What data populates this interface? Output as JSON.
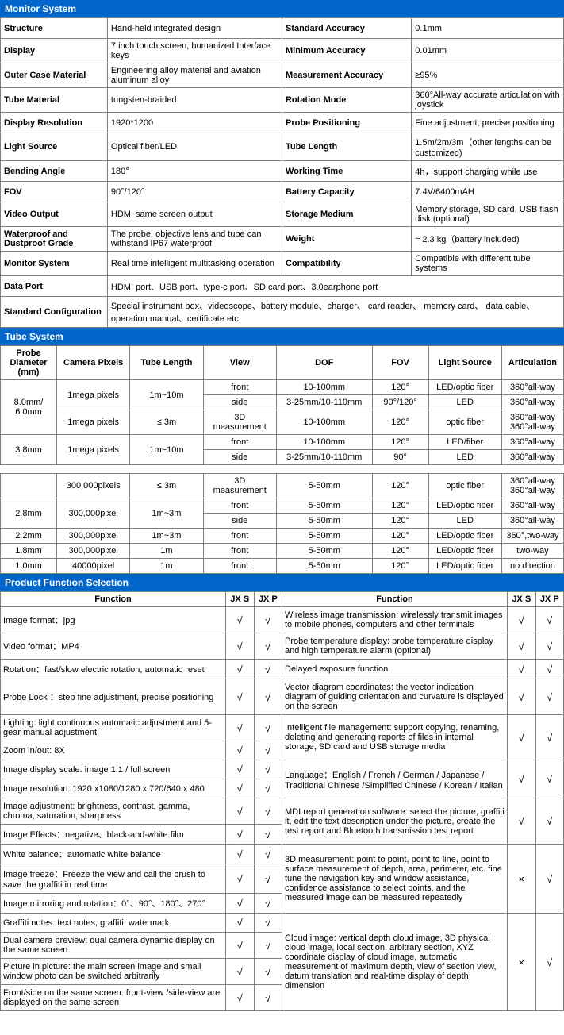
{
  "colors": {
    "header_bg": "#0066cc",
    "header_text": "#ffffff",
    "border": "#808080"
  },
  "sections": {
    "monitor": {
      "title": "Monitor System"
    },
    "tube": {
      "title": "Tube System"
    },
    "func": {
      "title": "Product Function Selection"
    }
  },
  "monitor_rows": [
    [
      "Structure",
      "Hand-held integrated design",
      "Standard Accuracy",
      "0.1mm"
    ],
    [
      "Display",
      "7 inch touch screen, humanized Interface keys",
      "Minimum Accuracy",
      "0.01mm"
    ],
    [
      "Outer Case Material",
      "Engineering alloy material and aviation aluminum alloy",
      "Measurement Accuracy",
      "≥95%"
    ],
    [
      "Tube Material",
      "tungsten-braided",
      "Rotation Mode",
      "360°All-way accurate articulation with joystick"
    ],
    [
      "Display Resolution",
      "1920*1200",
      "Probe Positioning",
      "Fine adjustment, precise positioning"
    ],
    [
      "Light Source",
      "Optical fiber/LED",
      "Tube Length",
      "1.5m/2m/3m（other lengths can be customized)"
    ],
    [
      "Bending Angle",
      "180°",
      "Working Time",
      "4h，support charging while use"
    ],
    [
      "FOV",
      "90°/120°",
      "Battery Capacity",
      "7.4V/6400mAH"
    ],
    [
      "Video Output",
      "HDMI same screen output",
      "Storage Medium",
      "Memory storage, SD card, USB flash disk (optional)"
    ],
    [
      "Waterproof and Dustproof Grade",
      "The probe, objective lens and tube can withstand IP67 waterproof",
      "Weight",
      "≈ 2.3 kg（battery included)"
    ],
    [
      "Monitor System",
      "Real time intelligent multitasking operation",
      "Compatibility",
      "Compatible with different tube systems"
    ]
  ],
  "monitor_tail": [
    {
      "label": "Data Port",
      "value": "HDMI port、USB port、type-c port、SD card   port、3.0earphone port"
    },
    {
      "label": "Standard Configuration",
      "value": "Special instrument box、videoscope、battery module、charger、 card reader、 memory card、 data cable、operation manual、certificate etc."
    }
  ],
  "tube_headers": [
    "Probe Diameter (mm)",
    "Camera Pixels",
    "Tube Length",
    "View",
    "DOF",
    "FOV",
    "Light Source",
    "Articulation"
  ],
  "tube1": {
    "r1": {
      "dia": "8.0mm/ 6.0mm",
      "pix": "1mega pixels",
      "len": "1m~10m",
      "view": "front",
      "dof": "10-100mm",
      "fov": "120°",
      "ls": "LED/optic fiber",
      "art": "360°all-way"
    },
    "r2": {
      "view": "side",
      "dof": "3-25mm/10-110mm",
      "fov": "90°/120°",
      "ls": "LED",
      "art": "360°all-way"
    },
    "r3": {
      "pix": "1mega pixels",
      "len": "≤ 3m",
      "view": "3D measurement",
      "dof": "10-100mm",
      "fov": "120°",
      "ls": "optic fiber",
      "art": "360°all-way 360°all-way"
    },
    "r4": {
      "dia": "3.8mm",
      "pix": "1mega pixels",
      "len": "1m~10m",
      "view": "front",
      "dof": "10-100mm",
      "fov": "120°",
      "ls": "LED/fiber",
      "art": "360°all-way"
    },
    "r5": {
      "view": "side",
      "dof": "3-25mm/10-110mm",
      "fov": "90°",
      "ls": "LED",
      "art": "360°all-way"
    }
  },
  "tube2": {
    "r1": {
      "dia": "",
      "pix": "300,000pixels",
      "len": "≤ 3m",
      "view": "3D measurement",
      "dof": "5-50mm",
      "fov": "120°",
      "ls": "optic fiber",
      "art": "360°all-way 360°all-way"
    },
    "r2": {
      "dia": "2.8mm",
      "pix": "300,000pixel",
      "len": "1m~3m",
      "view": "front",
      "dof": "5-50mm",
      "fov": "120°",
      "ls": "LED/optic fiber",
      "art": "360°all-way"
    },
    "r3": {
      "view": "side",
      "dof": "5-50mm",
      "fov": "120°",
      "ls": "LED",
      "art": "360°all-way"
    },
    "r4": {
      "dia": "2.2mm",
      "pix": "300,000pixel",
      "len": "1m~3m",
      "view": "front",
      "dof": "5-50mm",
      "fov": "120°",
      "ls": "LED/optic fiber",
      "art": "360°,two-way"
    },
    "r5": {
      "dia": "1.8mm",
      "pix": "300,000pixel",
      "len": "1m",
      "view": "front",
      "dof": "5-50mm",
      "fov": "120°",
      "ls": "LED/optic fiber",
      "art": "two-way"
    },
    "r6": {
      "dia": "1.0mm",
      "pix": "40000pixel",
      "len": "1m",
      "view": "front",
      "dof": "5-50mm",
      "fov": "120°",
      "ls": "LED/optic fiber",
      "art": "no direction"
    }
  },
  "func_headers": {
    "function": "Function",
    "jxs": "JX S",
    "jxp": "JX P"
  },
  "func_left": [
    {
      "t": "Image format：jpg",
      "s": "√",
      "p": "√"
    },
    {
      "t": "Video format：MP4",
      "s": "√",
      "p": "√"
    },
    {
      "t": "Rotation：fast/slow electric rotation, automatic reset",
      "s": "√",
      "p": "√"
    },
    {
      "t": "Probe Lock ：step fine adjustment, precise positioning",
      "s": "√",
      "p": "√"
    },
    {
      "t": "Lighting: light continuous automatic adjustment and 5-gear manual adjustment",
      "s": "√",
      "p": "√"
    },
    {
      "t": "Zoom in/out: 8X",
      "s": "√",
      "p": "√"
    },
    {
      "t": "Image display scale: image 1:1 / full screen",
      "s": "√",
      "p": "√"
    },
    {
      "t": "Image resolution: 1920 x1080/1280 x 720/640 x 480",
      "s": "√",
      "p": "√"
    },
    {
      "t": "Image adjustment: brightness, contrast, gamma, chroma, saturation, sharpness",
      "s": "√",
      "p": "√"
    },
    {
      "t": "Image Effects：negative、black-and-white film",
      "s": "√",
      "p": "√"
    },
    {
      "t": "White balance：automatic white balance",
      "s": "√",
      "p": "√"
    },
    {
      "t": "Image freeze：Freeze the view and call the brush to save the graffiti in real time",
      "s": "√",
      "p": "√"
    },
    {
      "t": "Image mirroring and rotation：0°、90°、180°、270°",
      "s": "√",
      "p": "√"
    },
    {
      "t": "Graffiti notes: text notes, graffiti, watermark",
      "s": "√",
      "p": "√"
    },
    {
      "t": "Dual camera preview: dual camera dynamic display on the same screen",
      "s": "√",
      "p": "√"
    },
    {
      "t": "Picture in picture: the main screen image and small window photo can be switched arbitrarily",
      "s": "√",
      "p": "√"
    },
    {
      "t": "Front/side on the same screen: front-view /side-view are displayed on the same screen",
      "s": "√",
      "p": "√"
    }
  ],
  "func_right": [
    {
      "t": "Wireless image transmission: wirelessly transmit images to mobile phones, computers and other terminals",
      "s": "√",
      "p": "√",
      "rs": 1
    },
    {
      "t": "Probe temperature display: probe temperature display and high temperature alarm (optional)",
      "s": "√",
      "p": "√",
      "rs": 1
    },
    {
      "t": "Delayed exposure function",
      "s": "√",
      "p": "√",
      "rs": 1
    },
    {
      "t": "Vector diagram coordinates: the vector indication diagram of guiding orientation and curvature is displayed on the screen",
      "s": "√",
      "p": "√",
      "rs": 1
    },
    {
      "t": "Intelligent file management: support copying, renaming, deleting and generating reports of files in internal storage, SD card and USB storage media",
      "s": "√",
      "p": "√",
      "rs": 2
    },
    {
      "t": "Language：English / French / German / Japanese / Traditional Chinese /Simplified Chinese / Korean / Italian",
      "s": "√",
      "p": "√",
      "rs": 2
    },
    {
      "t": "MDI report generation software: select the picture, graffiti it, edit the text description under the picture, create the test report and Bluetooth transmission test report",
      "s": "√",
      "p": "√",
      "rs": 2
    },
    {
      "t": "3D measurement: point to point, point to line, point to surface measurement of depth, area, perimeter, etc. fine tune the navigation key and window assistance, confidence assistance to select points, and the measured image can be measured repeatedly",
      "s": "×",
      "p": "√",
      "rs": 3
    },
    {
      "t": "Cloud image: vertical depth cloud image, 3D physical cloud image, local section, arbitrary section, XYZ coordinate display of cloud image, automatic measurement of maximum depth, view of section view, datum translation and real-time display of depth dimension",
      "s": "×",
      "p": "√",
      "rs": 4
    }
  ]
}
